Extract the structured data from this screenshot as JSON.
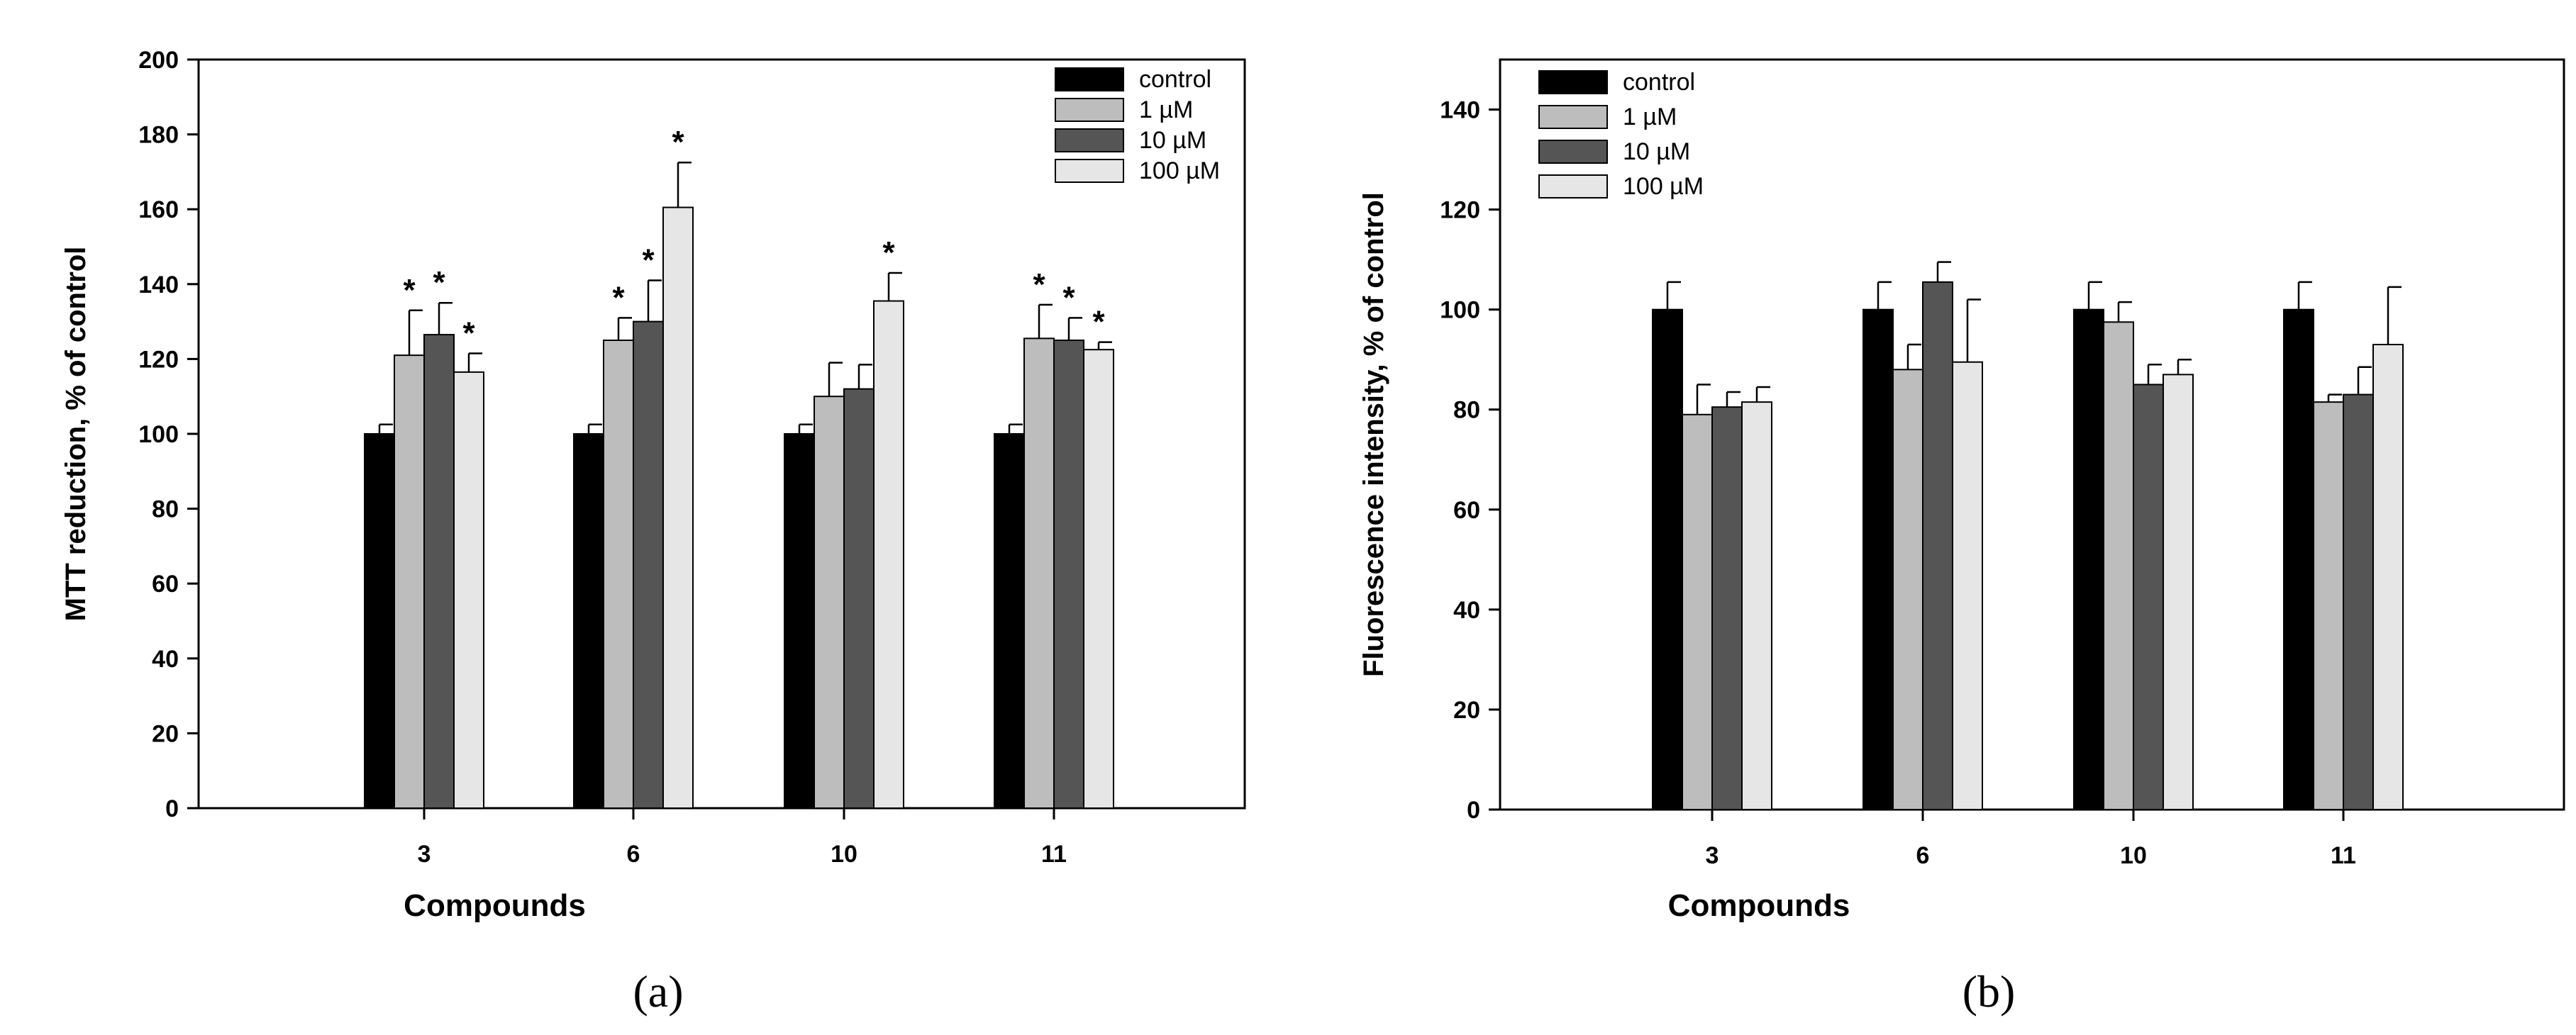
{
  "colors": {
    "control": "#000000",
    "1 µM": "#bdbdbd",
    "10 µM": "#555555",
    "100 µM": "#e6e6e6"
  },
  "chart_data": [
    {
      "type": "bar",
      "panel_label": "(a)",
      "title": "",
      "xlabel": "Compounds",
      "ylabel": "MTT reduction, % of control",
      "categories": [
        "3",
        "6",
        "10",
        "11"
      ],
      "ylim": [
        0,
        200
      ],
      "yticks": [
        0,
        20,
        40,
        60,
        80,
        100,
        120,
        140,
        160,
        180,
        200
      ],
      "legend_position": "top-right",
      "series": [
        {
          "name": "control",
          "values": [
            100,
            100,
            100,
            100
          ],
          "errors": [
            2.5,
            2.5,
            2.5,
            2.5
          ],
          "significant": [
            false,
            false,
            false,
            false
          ]
        },
        {
          "name": "1 µM",
          "values": [
            121,
            125,
            110,
            125.5
          ],
          "errors": [
            12,
            6,
            9,
            9
          ],
          "significant": [
            true,
            true,
            false,
            true
          ]
        },
        {
          "name": "10 µM",
          "values": [
            126.5,
            130,
            112,
            125
          ],
          "errors": [
            8.5,
            11,
            6.5,
            6
          ],
          "significant": [
            true,
            true,
            false,
            true
          ]
        },
        {
          "name": "100 µM",
          "values": [
            116.5,
            160.5,
            135.5,
            122.5
          ],
          "errors": [
            5,
            12,
            7.5,
            2
          ],
          "significant": [
            true,
            true,
            true,
            true
          ]
        }
      ],
      "significance_marker": "*"
    },
    {
      "type": "bar",
      "panel_label": "(b)",
      "title": "",
      "xlabel": "Compounds",
      "ylabel": "Fluorescence intensity, % of control",
      "categories": [
        "3",
        "6",
        "10",
        "11"
      ],
      "ylim": [
        0,
        150
      ],
      "yticks": [
        0,
        20,
        40,
        60,
        80,
        100,
        120,
        140
      ],
      "legend_position": "top-left",
      "series": [
        {
          "name": "control",
          "values": [
            100,
            100,
            100,
            100
          ],
          "errors": [
            5.5,
            5.5,
            5.5,
            5.5
          ],
          "significant": [
            false,
            false,
            false,
            false
          ]
        },
        {
          "name": "1 µM",
          "values": [
            79,
            88,
            97.5,
            81.5
          ],
          "errors": [
            6,
            5,
            4,
            1.5
          ],
          "significant": [
            false,
            false,
            false,
            false
          ]
        },
        {
          "name": "10 µM",
          "values": [
            80.5,
            105.5,
            85,
            83
          ],
          "errors": [
            3,
            4,
            4,
            5.5
          ],
          "significant": [
            false,
            false,
            false,
            false
          ]
        },
        {
          "name": "100 µM",
          "values": [
            81.5,
            89.5,
            87,
            93
          ],
          "errors": [
            3,
            12.5,
            3,
            11.5
          ],
          "significant": [
            false,
            false,
            false,
            false
          ]
        }
      ],
      "significance_marker": "*"
    }
  ]
}
